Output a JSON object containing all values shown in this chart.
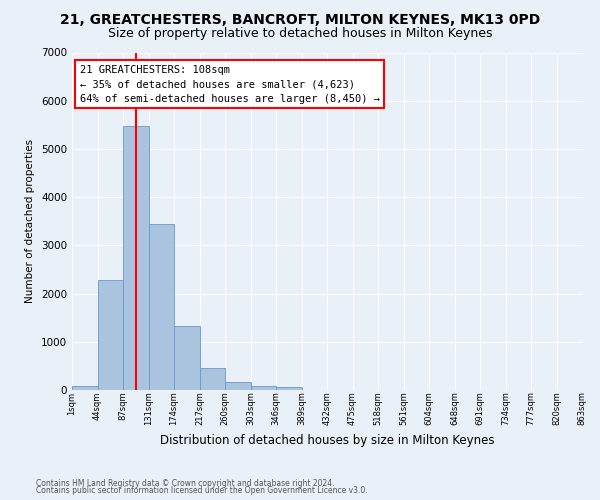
{
  "title": "21, GREATCHESTERS, BANCROFT, MILTON KEYNES, MK13 0PD",
  "subtitle": "Size of property relative to detached houses in Milton Keynes",
  "xlabel": "Distribution of detached houses by size in Milton Keynes",
  "ylabel": "Number of detached properties",
  "footer_line1": "Contains HM Land Registry data © Crown copyright and database right 2024.",
  "footer_line2": "Contains public sector information licensed under the Open Government Licence v3.0.",
  "bar_values": [
    75,
    2280,
    5470,
    3450,
    1320,
    460,
    160,
    90,
    55,
    0,
    0,
    0,
    0,
    0,
    0,
    0,
    0,
    0,
    0,
    0
  ],
  "bin_labels": [
    "1sqm",
    "44sqm",
    "87sqm",
    "131sqm",
    "174sqm",
    "217sqm",
    "260sqm",
    "303sqm",
    "346sqm",
    "389sqm",
    "432sqm",
    "475sqm",
    "518sqm",
    "561sqm",
    "604sqm",
    "648sqm",
    "691sqm",
    "734sqm",
    "777sqm",
    "820sqm",
    "863sqm"
  ],
  "bar_color": "#aac4e0",
  "bar_edge_color": "#6699cc",
  "vline_color": "red",
  "vline_pos": 2.5,
  "ylim": [
    0,
    7000
  ],
  "yticks": [
    0,
    1000,
    2000,
    3000,
    4000,
    5000,
    6000,
    7000
  ],
  "annotation_text": "21 GREATCHESTERS: 108sqm\n← 35% of detached houses are smaller (4,623)\n64% of semi-detached houses are larger (8,450) →",
  "annotation_box_color": "white",
  "annotation_border_color": "red",
  "bg_color": "#eaf0f8",
  "grid_color": "white",
  "title_fontsize": 10,
  "subtitle_fontsize": 9
}
